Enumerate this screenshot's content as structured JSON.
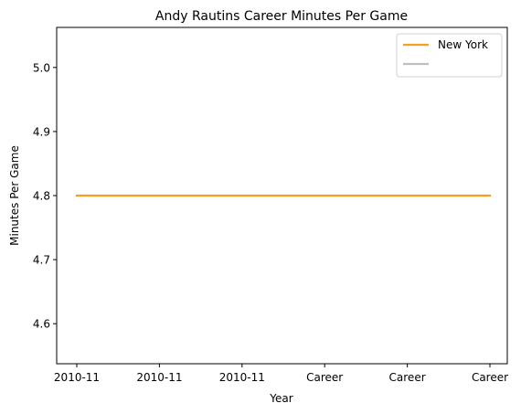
{
  "chart_data": {
    "type": "line",
    "title": "Andy Rautins Career Minutes Per Game",
    "xlabel": "Year",
    "ylabel": "Minutes Per Game",
    "categories": [
      "2010-11",
      "2010-11",
      "2010-11",
      "Career",
      "Career",
      "Career"
    ],
    "series": [
      {
        "name": "New York",
        "color": "#f5a023",
        "values": [
          4.8,
          4.8,
          4.8,
          4.8,
          4.8,
          4.8
        ]
      }
    ],
    "ylim": [
      4.5375,
      5.0625
    ],
    "yticks": [
      4.6,
      4.7,
      4.8,
      4.9,
      5.0
    ],
    "ytick_labels": [
      "4.6",
      "4.7",
      "4.8",
      "4.9",
      "5.0"
    ],
    "legend": {
      "position": "top-right",
      "entries": [
        {
          "label": "New York",
          "color": "#f5a023"
        },
        {
          "label": "",
          "color": "#bfbfbf"
        }
      ]
    },
    "grid": false
  }
}
